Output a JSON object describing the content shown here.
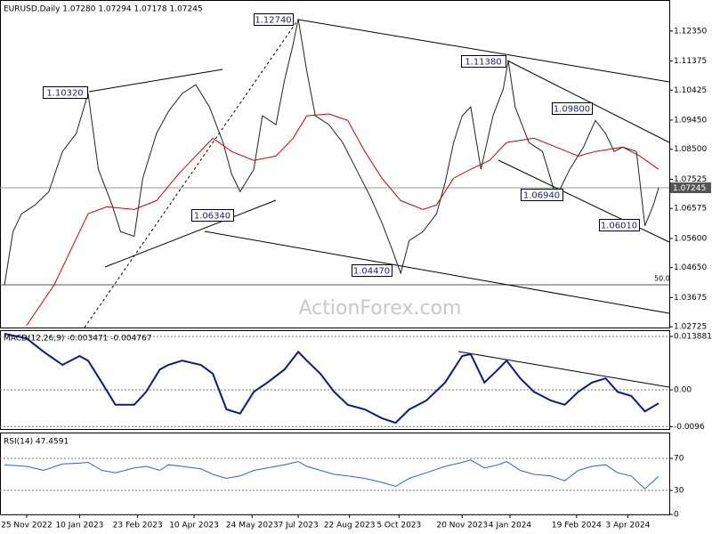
{
  "chart_data": [
    {
      "type": "line",
      "title": "EURUSD,Daily 1.07280 1.07294 1.07178 1.07245",
      "xlim": [
        0,
        383
      ],
      "ylim": [
        1.027,
        1.133
      ],
      "grid": false,
      "yticks": [
        {
          "value": 1.1235,
          "label": "1.12350"
        },
        {
          "value": 1.11375,
          "label": "1.11375"
        },
        {
          "value": 1.10425,
          "label": "1.10425"
        },
        {
          "value": 1.0945,
          "label": "1.09450"
        },
        {
          "value": 1.085,
          "label": "1.08500"
        },
        {
          "value": 1.07525,
          "label": "1.07525"
        },
        {
          "value": 1.06575,
          "label": "1.06575"
        },
        {
          "value": 1.056,
          "label": "1.05600"
        },
        {
          "value": 1.0465,
          "label": "1.04650"
        },
        {
          "value": 1.03675,
          "label": "1.03675"
        },
        {
          "value": 1.02725,
          "label": "1.02725"
        }
      ],
      "series": [
        {
          "color": "#222222",
          "x": [
            0,
            5,
            10,
            18,
            26,
            34,
            42,
            49,
            55,
            63,
            68,
            76,
            81,
            89,
            96,
            104,
            112,
            120,
            128,
            133,
            138,
            146,
            151,
            159,
            164,
            169,
            172,
            177,
            182,
            190,
            198,
            206,
            214,
            221,
            227,
            232,
            237,
            245,
            253,
            258,
            263,
            268,
            273,
            279,
            286,
            292,
            295,
            299,
            307,
            315,
            323,
            331,
            339,
            346,
            352,
            357,
            362,
            370,
            375,
            380,
            383
          ],
          "values": [
            1.0408,
            1.0582,
            1.064,
            1.0669,
            1.0712,
            1.0843,
            1.0901,
            1.1032,
            1.0785,
            1.0669,
            1.0582,
            1.0567,
            1.0756,
            1.0901,
            1.0973,
            1.1031,
            1.106,
            1.0988,
            1.0872,
            1.077,
            1.0712,
            1.0785,
            1.0959,
            1.093,
            1.1075,
            1.1191,
            1.1274,
            1.1104,
            1.0959,
            1.093,
            1.0872,
            1.0785,
            1.0698,
            1.0611,
            1.0524,
            1.0447,
            1.0553,
            1.0582,
            1.064,
            1.0741,
            1.0872,
            1.0959,
            1.0988,
            1.0785,
            1.0959,
            1.1046,
            1.1138,
            1.0988,
            1.0872,
            1.0843,
            1.0694,
            1.0785,
            1.0857,
            1.0944,
            1.0901,
            1.0843,
            1.0857,
            1.0843,
            1.0601,
            1.0669,
            1.0724
          ]
        },
        {
          "color": "#d40000",
          "x": [
            13,
            29,
            39,
            49,
            60,
            76,
            89,
            102,
            112,
            122,
            133,
            146,
            159,
            169,
            177,
            190,
            201,
            211,
            221,
            232,
            245,
            253,
            263,
            273,
            284,
            294,
            310,
            323,
            336,
            346,
            362,
            372,
            383
          ],
          "values": [
            1.0277,
            1.0408,
            1.0524,
            1.064,
            1.0663,
            1.0654,
            1.0683,
            1.077,
            1.0828,
            1.0886,
            1.0843,
            1.0814,
            1.0828,
            1.0886,
            1.0959,
            1.0965,
            1.0944,
            1.0843,
            1.0756,
            1.0683,
            1.0654,
            1.0669,
            1.0756,
            1.0785,
            1.0814,
            1.0872,
            1.0886,
            1.0857,
            1.0828,
            1.0843,
            1.0857,
            1.0828,
            1.0785
          ]
        }
      ],
      "annotations": [
        "1.12740",
        "1.10320",
        "1.11380",
        "1.09800",
        "1.06340",
        "1.04470",
        "1.06940",
        "1.06010",
        "50.0",
        "1.07245"
      ],
      "watermark": "ActionForex.com"
    },
    {
      "type": "line",
      "title": "MACD(12,26,9) -0.003471 -0.004767",
      "xlim": [
        0,
        383
      ],
      "ylim": [
        -0.0102,
        0.0153
      ],
      "grid": true,
      "yticks": [
        0.013881,
        {
          "value": 0,
          "label": "0.00"
        },
        -0.0096
      ],
      "series": [
        {
          "color": "#0a1a8c",
          "x": [
            0,
            13,
            23,
            34,
            44,
            49,
            57,
            65,
            76,
            83,
            91,
            96,
            104,
            115,
            122,
            130,
            138,
            146,
            154,
            164,
            172,
            177,
            185,
            193,
            201,
            211,
            221,
            229,
            237,
            247,
            258,
            268,
            273,
            281,
            289,
            294,
            302,
            310,
            320,
            328,
            336,
            344,
            352,
            359,
            367,
            375,
            383
          ],
          "values": [
            0.0146,
            0.0134,
            0.0099,
            0.0065,
            0.0088,
            0.0076,
            0.0019,
            -0.0039,
            -0.0039,
            -0.0005,
            0.0053,
            0.0065,
            0.0076,
            0.0065,
            0.0042,
            -0.0051,
            -0.0062,
            -0.0005,
            0.0019,
            0.0053,
            0.0099,
            0.0076,
            0.0042,
            -0.0005,
            -0.0039,
            -0.0051,
            -0.0074,
            -0.0086,
            -0.0051,
            -0.0028,
            0.0019,
            0.0088,
            0.0093,
            0.0019,
            0.0053,
            0.0076,
            0.003,
            -0.0005,
            -0.0028,
            -0.0039,
            -0.0005,
            0.0019,
            0.003,
            -0.0005,
            -0.0016,
            -0.0056,
            -0.0035
          ]
        }
      ]
    },
    {
      "type": "line",
      "title": "RSI(14) 47.4591",
      "xlim": [
        0,
        383
      ],
      "ylim": [
        0,
        100
      ],
      "grid": true,
      "yticks": [
        0,
        30,
        70
      ],
      "xticks": [
        {
          "value": 13,
          "label": "25 Nov 2022"
        },
        {
          "value": 44,
          "label": "10 Jan 2023"
        },
        {
          "value": 78,
          "label": "23 Feb 2023"
        },
        {
          "value": 111,
          "label": "10 Apr 2023"
        },
        {
          "value": 145,
          "label": "24 May 2023"
        },
        {
          "value": 172,
          "label": "7 Jul 2023"
        },
        {
          "value": 202,
          "label": "22 Aug 2023"
        },
        {
          "value": 231,
          "label": "5 Oct 2023"
        },
        {
          "value": 268,
          "label": "20 Nov 2023"
        },
        {
          "value": 296,
          "label": "4 Jan 2024"
        },
        {
          "value": 335,
          "label": "19 Feb 2024"
        },
        {
          "value": 365,
          "label": "3 Apr 2024"
        }
      ],
      "series": [
        {
          "color": "#3060d0",
          "x": [
            0,
            13,
            23,
            34,
            44,
            49,
            57,
            65,
            76,
            83,
            91,
            96,
            104,
            115,
            122,
            130,
            138,
            146,
            154,
            164,
            172,
            177,
            185,
            193,
            201,
            211,
            221,
            229,
            237,
            247,
            258,
            268,
            273,
            281,
            289,
            294,
            302,
            310,
            320,
            328,
            336,
            344,
            352,
            359,
            367,
            375,
            383
          ],
          "values": [
            62,
            60,
            55,
            63,
            64,
            65,
            55,
            52,
            58,
            60,
            55,
            62,
            60,
            57,
            50,
            45,
            48,
            55,
            58,
            62,
            66,
            60,
            55,
            50,
            48,
            45,
            40,
            35,
            45,
            52,
            60,
            65,
            68,
            58,
            62,
            66,
            55,
            50,
            48,
            42,
            55,
            60,
            62,
            52,
            48,
            32,
            47.5
          ]
        }
      ]
    }
  ]
}
